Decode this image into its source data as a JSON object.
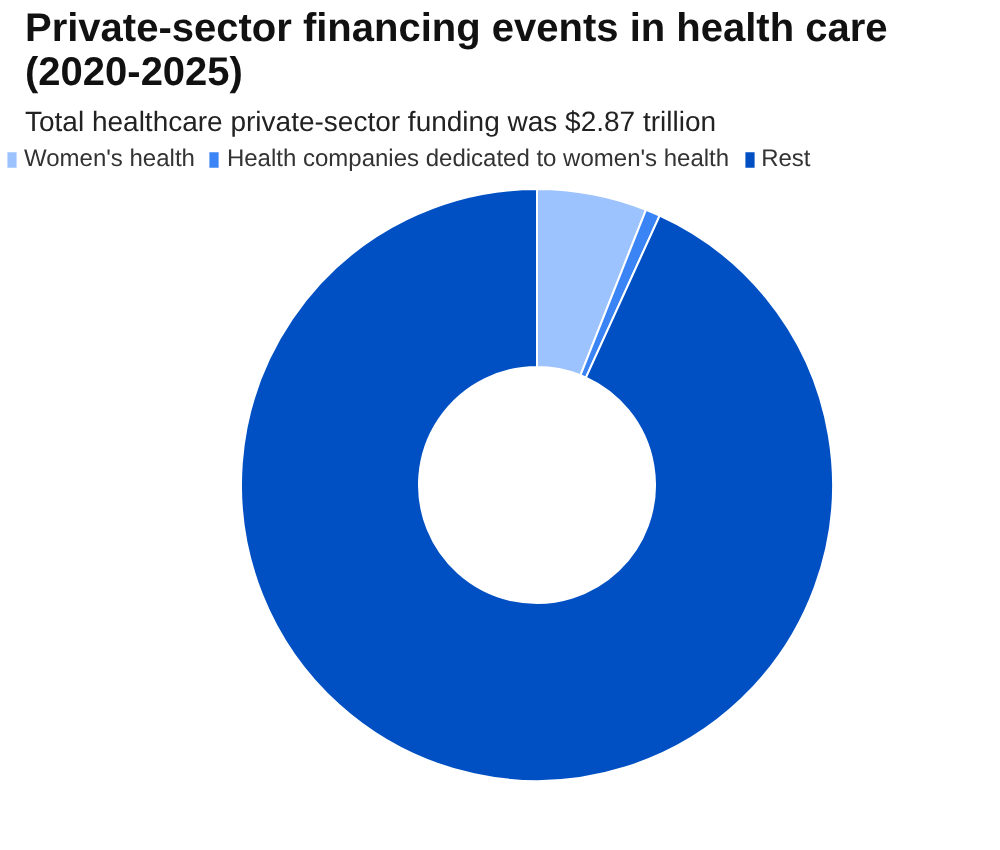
{
  "chart_data": {
    "type": "donut",
    "title": "Private-sector financing events in health care\n(2020-2025)",
    "subtitle": "Total healthcare private-sector funding was $2.87 trillion",
    "categories": [
      "Women's health",
      "Health companies dedicated to women's health",
      "Rest"
    ],
    "values": [
      6.0,
      0.8,
      93.2
    ],
    "colors": [
      "#9dc3ff",
      "#3a84f5",
      "#0050c4"
    ],
    "legend": "top left"
  }
}
